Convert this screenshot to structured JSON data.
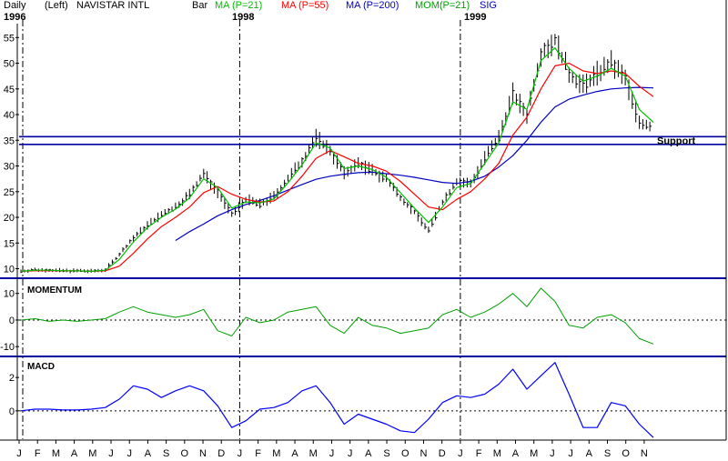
{
  "header": {
    "period": "Daily",
    "scale_side": "(Left)",
    "symbol": "NAVISTAR INTL",
    "bar": "Bar",
    "ma21": "MA (P=21)",
    "ma55": "MA (P=55)",
    "ma200": "MA (P=200)",
    "mom": "MOM(P=21)",
    "sig": "SIG"
  },
  "years": [
    "1996",
    "1998",
    "1999"
  ],
  "colors": {
    "ma21": "#00c000",
    "ma55": "#ff0000",
    "ma200": "#0000c0",
    "mom": "#00a000",
    "macd": "#0000ff",
    "support": "#0000a0",
    "axis": "#000000"
  },
  "panels": {
    "momentum_label": "MOMENTUM",
    "macd_label": "MACD"
  },
  "support_label": "Support",
  "chart_data": [
    {
      "type": "line",
      "panel": "price",
      "y_ticks": [
        10,
        15,
        20,
        25,
        30,
        35,
        40,
        45,
        50,
        55
      ],
      "ylim": [
        8.5,
        57
      ],
      "month_labels": [
        "J",
        "F",
        "M",
        "A",
        "M",
        "J",
        "J",
        "A",
        "S",
        "O",
        "N",
        "D",
        "J",
        "F",
        "M",
        "A",
        "M",
        "J",
        "J",
        "A",
        "S",
        "O",
        "N",
        "D",
        "J",
        "F",
        "M",
        "A",
        "M",
        "J",
        "J",
        "A",
        "S",
        "O",
        "N"
      ],
      "year_markers": [
        0,
        12,
        24
      ],
      "support_levels": [
        35.7,
        34.2
      ],
      "series": [
        {
          "key": "price",
          "values": [
            9.5,
            9.8,
            9.7,
            9.6,
            9.6,
            9.5,
            9.8,
            12.8,
            16.0,
            18.5,
            20.5,
            22.0,
            24.5,
            28.5,
            25.0,
            20.5,
            23.5,
            22.5,
            24.0,
            27.5,
            31.0,
            35.5,
            33.0,
            28.5,
            30.5,
            29.0,
            27.5,
            24.0,
            21.0,
            17.5,
            23.0,
            27.0,
            26.5,
            31.5,
            35.5,
            44.0,
            40.0,
            52.0,
            54.5,
            48.0,
            45.5,
            48.0,
            50.0,
            47.0,
            38.5,
            37.5
          ]
        },
        {
          "key": "ma21",
          "values": [
            9.5,
            9.7,
            9.7,
            9.6,
            9.6,
            9.5,
            9.7,
            11.8,
            15.2,
            18.0,
            20.0,
            21.6,
            23.8,
            27.5,
            25.8,
            21.8,
            23.0,
            22.8,
            23.6,
            26.7,
            30.2,
            34.5,
            33.5,
            29.5,
            30.0,
            29.3,
            27.8,
            24.8,
            21.8,
            19.0,
            22.0,
            25.8,
            26.6,
            30.5,
            34.5,
            42.5,
            41.0,
            50.5,
            53.0,
            49.0,
            46.5,
            47.5,
            49.0,
            47.5,
            41.0,
            38.5
          ]
        },
        {
          "key": "ma55",
          "values": [
            9.5,
            9.6,
            9.6,
            9.6,
            9.6,
            9.5,
            9.6,
            10.5,
            13.0,
            15.8,
            18.2,
            20.0,
            22.0,
            24.8,
            26.0,
            24.5,
            23.5,
            23.0,
            23.2,
            25.0,
            28.0,
            31.5,
            33.0,
            31.8,
            30.5,
            30.0,
            29.0,
            27.0,
            24.5,
            22.0,
            21.5,
            23.5,
            25.0,
            27.5,
            30.5,
            36.0,
            39.5,
            45.0,
            49.5,
            50.0,
            48.5,
            48.0,
            48.5,
            48.0,
            45.5,
            43.5
          ]
        },
        {
          "key": "ma200",
          "values": [
            null,
            null,
            null,
            null,
            null,
            null,
            null,
            null,
            null,
            null,
            null,
            15.5,
            17.2,
            18.7,
            20.3,
            21.5,
            22.5,
            23.3,
            24.2,
            25.3,
            26.4,
            27.4,
            28.0,
            28.4,
            28.7,
            28.8,
            28.5,
            28.2,
            27.8,
            27.3,
            26.8,
            26.6,
            27.0,
            28.0,
            29.8,
            32.0,
            35.0,
            38.5,
            41.5,
            43.0,
            43.8,
            44.5,
            45.0,
            45.2,
            45.3,
            45.2
          ]
        }
      ]
    },
    {
      "type": "line",
      "panel": "momentum",
      "series_name": "MOMENTUM",
      "y_ticks": [
        10,
        0,
        -10
      ],
      "ylim": [
        -13,
        14
      ],
      "values": [
        0,
        0.5,
        -0.5,
        0,
        -0.5,
        0,
        0.5,
        3,
        5,
        3,
        2,
        1,
        2,
        4,
        -4,
        -6,
        1,
        -1,
        0,
        3,
        4,
        5,
        -2,
        -5,
        1,
        -2,
        -3,
        -5,
        -4,
        -3,
        2,
        4,
        1,
        3,
        6,
        10,
        5,
        12,
        7,
        -2,
        -3,
        1,
        2,
        -1,
        -7,
        -9
      ]
    },
    {
      "type": "line",
      "panel": "macd",
      "series_name": "MACD",
      "y_ticks": [
        2,
        0
      ],
      "ylim": [
        -1.7,
        3.1
      ],
      "values": [
        0,
        0.1,
        0.1,
        0.05,
        0.05,
        0.1,
        0.2,
        0.7,
        1.5,
        1.3,
        0.8,
        1.2,
        1.5,
        1.2,
        0.3,
        -1.0,
        -0.6,
        0.1,
        0.2,
        0.5,
        1.2,
        1.5,
        0.5,
        -0.8,
        -0.2,
        -0.5,
        -0.8,
        -1.2,
        -1.3,
        -0.5,
        0.5,
        0.9,
        0.8,
        1.0,
        1.6,
        2.5,
        1.3,
        2.1,
        2.9,
        1.0,
        -1.0,
        -1.0,
        0.5,
        0.3,
        -0.8,
        -1.6
      ]
    }
  ]
}
